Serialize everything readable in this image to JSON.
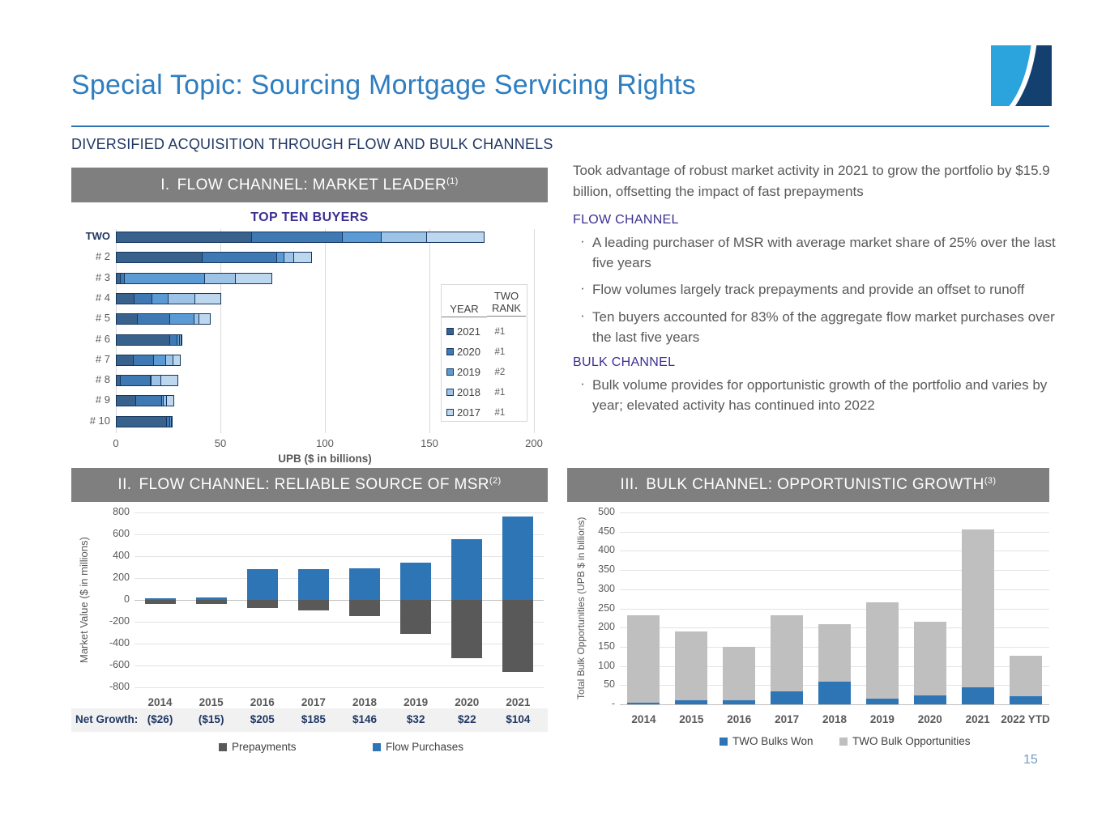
{
  "slide": {
    "title": "Special Topic: Sourcing Mortgage Servicing Rights",
    "subtitle": "DIVERSIFIED ACQUISITION THROUGH FLOW AND BULK CHANNELS",
    "page_number": "15",
    "colors": {
      "accent_blue": "#2E7EC1",
      "divider_blue": "#2E75B6",
      "navy": "#203864",
      "heading_purple": "#3B3092",
      "header_bar_gray": "#7F7F7F",
      "body_gray": "#595959",
      "logo_light_blue": "#2BA3DC",
      "logo_dark_navy": "#14406F"
    }
  },
  "sections": {
    "s1": {
      "numeral": "I.",
      "title": "FLOW CHANNEL: MARKET LEADER",
      "sup": "(1)"
    },
    "s2": {
      "numeral": "II.",
      "title": "FLOW CHANNEL: RELIABLE SOURCE OF MSR",
      "sup": "(2)"
    },
    "s3": {
      "numeral": "III.",
      "title": "BULK CHANNEL: OPPORTUNISTIC GROWTH",
      "sup": "(3)"
    }
  },
  "right_panel": {
    "intro": "Took advantage of robust market activity in 2021 to grow the portfolio by $15.9 billion, offsetting the impact of fast prepayments",
    "flow_heading": "FLOW CHANNEL",
    "flow_bullets": [
      "A leading purchaser of MSR with average market share of 25% over the last five years",
      "Flow volumes largely track prepayments and provide an offset to runoff",
      "Ten buyers accounted for 83% of the aggregate flow market purchases over the last five years"
    ],
    "bulk_heading": "BULK CHANNEL",
    "bulk_bullets": [
      "Bulk volume provides for opportunistic growth of the portfolio and varies by year; elevated activity has continued into 2022"
    ]
  },
  "chart_data": [
    {
      "id": "top-ten-buyers",
      "type": "bar",
      "orientation": "horizontal",
      "stacked": true,
      "title": "TOP TEN BUYERS",
      "xlabel": "UPB ($ in billions)",
      "xlim": [
        0,
        200
      ],
      "xticks": [
        0,
        50,
        100,
        150,
        200
      ],
      "grid": "vertical",
      "categories": [
        "TWO",
        "# 2",
        "# 3",
        "# 4",
        "# 5",
        "# 6",
        "# 7",
        "# 8",
        "# 9",
        "# 10"
      ],
      "series": [
        {
          "name": "2021",
          "color": "#38618C",
          "values": [
            65,
            41.5,
            2.5,
            9,
            10.5,
            26,
            8.5,
            2.5,
            9.5,
            24.5
          ]
        },
        {
          "name": "2020",
          "color": "#3E79B4",
          "values": [
            44,
            36,
            2,
            9,
            16,
            4,
            10,
            14.5,
            13,
            2
          ]
        },
        {
          "name": "2019",
          "color": "#5B9BD5",
          "values": [
            19,
            4,
            39,
            8,
            12,
            1.5,
            6.5,
            0.5,
            1,
            1
          ]
        },
        {
          "name": "2018",
          "color": "#9DC3E6",
          "values": [
            22,
            5,
            15,
            13,
            2.5,
            1,
            3.5,
            5,
            2,
            0.5
          ]
        },
        {
          "name": "2017",
          "color": "#BDD7EE",
          "values": [
            28,
            9,
            18,
            13,
            6,
            1,
            4,
            8.5,
            4,
            0
          ]
        }
      ],
      "legend_table": {
        "col1_header": "YEAR",
        "col2_header_line1": "TWO",
        "col2_header_line2": "RANK",
        "rows": [
          {
            "year": "2021",
            "rank": "#1"
          },
          {
            "year": "2020",
            "rank": "#1"
          },
          {
            "year": "2019",
            "rank": "#2"
          },
          {
            "year": "2018",
            "rank": "#1"
          },
          {
            "year": "2017",
            "rank": "#1"
          }
        ]
      }
    },
    {
      "id": "flow-channel-reliable-source",
      "type": "bar",
      "orientation": "vertical",
      "stacked": true,
      "diverging": true,
      "ylabel": "Market Value ($ in millions)",
      "ylim": [
        -800,
        800
      ],
      "yticks": [
        800,
        600,
        400,
        200,
        0,
        -200,
        -400,
        -600,
        -800
      ],
      "grid": "horizontal",
      "categories": [
        "2014",
        "2015",
        "2016",
        "2017",
        "2018",
        "2019",
        "2020",
        "2021"
      ],
      "series": [
        {
          "name": "Flow Purchases",
          "color": "#2E75B6",
          "values": [
            14,
            25,
            280,
            280,
            292,
            340,
            557,
            765
          ]
        },
        {
          "name": "Prepayments",
          "color": "#595959",
          "values": [
            -40,
            -40,
            -75,
            -95,
            -146,
            -308,
            -535,
            -661
          ]
        }
      ],
      "net_growth_label": "Net Growth:",
      "net_growth": [
        "($26)",
        "($15)",
        "$205",
        "$185",
        "$146",
        "$32",
        "$22",
        "$104"
      ],
      "legend": [
        "Prepayments",
        "Flow Purchases"
      ],
      "legend_colors": [
        "#595959",
        "#2E75B6"
      ]
    },
    {
      "id": "bulk-channel-opportunistic-growth",
      "type": "bar",
      "orientation": "vertical",
      "stacked": true,
      "ylabel": "Total Bulk Opportunities (UPB $ in billions)",
      "ylim": [
        0,
        500
      ],
      "yticks": [
        "500",
        "450",
        "400",
        "350",
        "300",
        "250",
        "200",
        "150",
        "100",
        "50",
        "-"
      ],
      "grid": "horizontal",
      "categories": [
        "2014",
        "2015",
        "2016",
        "2017",
        "2018",
        "2019",
        "2020",
        "2021",
        "2022 YTD"
      ],
      "series": [
        {
          "name": "TWO Bulks Won",
          "color": "#2E75B6",
          "values": [
            5,
            11,
            11,
            33,
            60,
            15,
            23,
            45,
            22
          ]
        },
        {
          "name": "TWO Bulk Opportunities",
          "color": "#BFBFBF",
          "values": [
            227,
            179,
            139,
            199,
            148,
            250,
            192,
            410,
            105
          ]
        }
      ],
      "stack_totals": [
        232,
        190,
        150,
        232,
        208,
        265,
        215,
        455,
        127
      ],
      "legend": [
        "TWO Bulks Won",
        "TWO Bulk Opportunities"
      ],
      "legend_colors": [
        "#2E75B6",
        "#BFBFBF"
      ]
    }
  ]
}
